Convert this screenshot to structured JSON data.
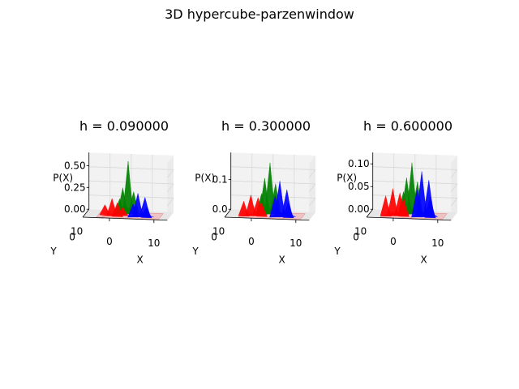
{
  "figure": {
    "suptitle": "3D hypercube-parzenwindow"
  },
  "colors": {
    "class_1": "#ff0000",
    "class_2": "#008000",
    "class_3": "#0000ff",
    "pane": "#f2f2f2",
    "grid": "#d8d8d8"
  },
  "chart_data": [
    {
      "type": "surface3d",
      "title": "h = 0.090000",
      "xlabel": "X",
      "ylabel": "Y",
      "zlabel": "P(X)",
      "x_ticks": [
        "0",
        "10"
      ],
      "y_ticks": [
        "0",
        "10"
      ],
      "z_ticks": [
        "0.00",
        "0.25",
        "0.50"
      ],
      "xlim": [
        -6,
        13
      ],
      "ylim": [
        -2,
        12
      ],
      "zlim": [
        0,
        0.65
      ],
      "series": [
        {
          "color": "#ff0000",
          "peaks": [
            {
              "x": 0.2,
              "y": 2,
              "z": 0.2
            },
            {
              "x": -1.5,
              "y": 3,
              "z": 0.12
            },
            {
              "x": 1.5,
              "y": 1,
              "z": 0.16
            },
            {
              "x": 2.5,
              "y": 3,
              "z": 0.1
            }
          ]
        },
        {
          "color": "#008000",
          "peaks": [
            {
              "x": 3.3,
              "y": 7,
              "z": 0.6
            },
            {
              "x": 2.2,
              "y": 6,
              "z": 0.3
            },
            {
              "x": 4.5,
              "y": 7.5,
              "z": 0.25
            },
            {
              "x": 1.6,
              "y": 5,
              "z": 0.18
            }
          ]
        },
        {
          "color": "#0000ff",
          "peaks": [
            {
              "x": 6,
              "y": 2,
              "z": 0.27
            },
            {
              "x": 7.5,
              "y": 3,
              "z": 0.22
            },
            {
              "x": 5,
              "y": 1.5,
              "z": 0.15
            },
            {
              "x": 8,
              "y": 1,
              "z": 0.12
            }
          ]
        }
      ]
    },
    {
      "type": "surface3d",
      "title": "h = 0.300000",
      "xlabel": "X",
      "ylabel": "Y",
      "zlabel": "P(X)",
      "x_ticks": [
        "0",
        "10"
      ],
      "y_ticks": [
        "0",
        "10"
      ],
      "z_ticks": [
        "0.0",
        "0.1"
      ],
      "xlim": [
        -6,
        13
      ],
      "ylim": [
        -2,
        12
      ],
      "zlim": [
        0,
        0.19
      ],
      "series": [
        {
          "color": "#ff0000",
          "peaks": [
            {
              "x": -0.5,
              "y": 2,
              "z": 0.07
            },
            {
              "x": 1,
              "y": 3,
              "z": 0.06
            },
            {
              "x": -2,
              "y": 1,
              "z": 0.05
            },
            {
              "x": 2,
              "y": 1.5,
              "z": 0.045
            }
          ]
        },
        {
          "color": "#008000",
          "peaks": [
            {
              "x": 3.3,
              "y": 7,
              "z": 0.17
            },
            {
              "x": 2.2,
              "y": 6,
              "z": 0.12
            },
            {
              "x": 4.5,
              "y": 7.5,
              "z": 0.1
            },
            {
              "x": 1.6,
              "y": 5,
              "z": 0.07
            }
          ]
        },
        {
          "color": "#0000ff",
          "peaks": [
            {
              "x": 6,
              "y": 2,
              "z": 0.12
            },
            {
              "x": 7.5,
              "y": 3,
              "z": 0.09
            },
            {
              "x": 5,
              "y": 1.5,
              "z": 0.07
            },
            {
              "x": 8,
              "y": 1,
              "z": 0.05
            }
          ]
        }
      ]
    },
    {
      "type": "surface3d",
      "title": "h = 0.600000",
      "xlabel": "X",
      "ylabel": "Y",
      "zlabel": "P(X)",
      "x_ticks": [
        "0",
        "10"
      ],
      "y_ticks": [
        "0",
        "10"
      ],
      "z_ticks": [
        "0.00",
        "0.05",
        "0.10"
      ],
      "xlim": [
        -6,
        13
      ],
      "ylim": [
        -2,
        12
      ],
      "zlim": [
        0,
        0.125
      ],
      "series": [
        {
          "color": "#ff0000",
          "peaks": [
            {
              "x": -0.5,
              "y": 2,
              "z": 0.06
            },
            {
              "x": 1,
              "y": 3,
              "z": 0.05
            },
            {
              "x": -2,
              "y": 1,
              "z": 0.045
            },
            {
              "x": 2,
              "y": 1.5,
              "z": 0.04
            }
          ]
        },
        {
          "color": "#008000",
          "peaks": [
            {
              "x": 3.3,
              "y": 7,
              "z": 0.112
            },
            {
              "x": 2.2,
              "y": 6,
              "z": 0.08
            },
            {
              "x": 4.5,
              "y": 7.5,
              "z": 0.07
            },
            {
              "x": 1.6,
              "y": 5,
              "z": 0.05
            }
          ]
        },
        {
          "color": "#0000ff",
          "peaks": [
            {
              "x": 6,
              "y": 2,
              "z": 0.1
            },
            {
              "x": 7.5,
              "y": 3,
              "z": 0.08
            },
            {
              "x": 5,
              "y": 1.5,
              "z": 0.06
            },
            {
              "x": 8,
              "y": 1,
              "z": 0.045
            }
          ]
        }
      ]
    }
  ]
}
